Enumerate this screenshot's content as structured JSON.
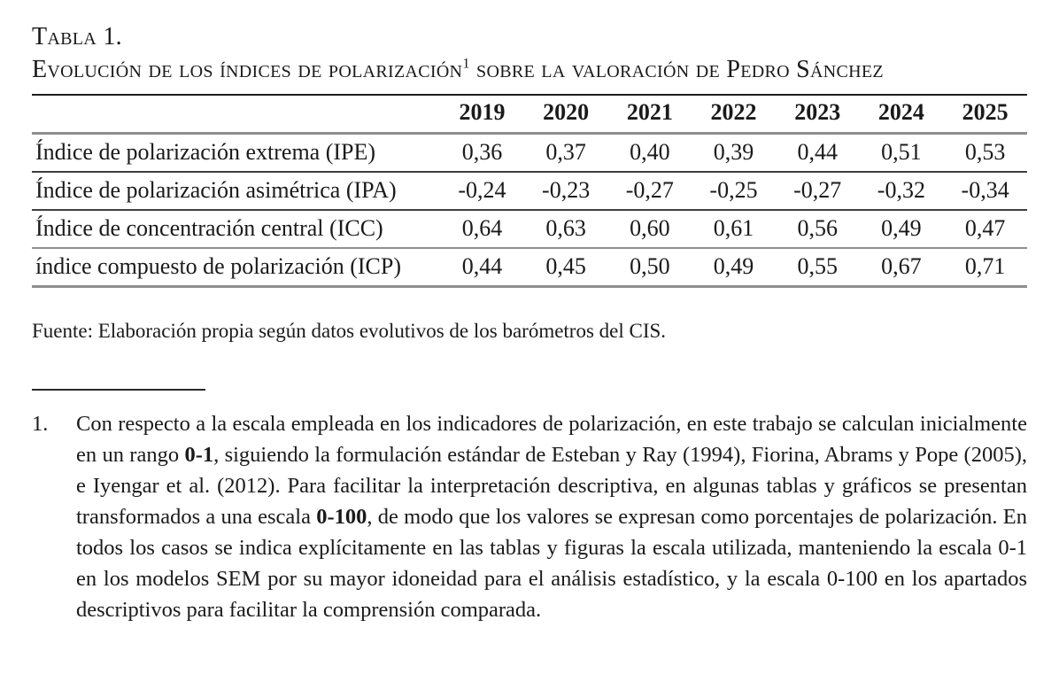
{
  "title": {
    "label": "Tabla 1.",
    "caption_pre": "Evolución de los índices de polarización",
    "caption_sup": "1",
    "caption_post": " sobre la valoración de Pedro Sánchez"
  },
  "table": {
    "columns": [
      "2019",
      "2020",
      "2021",
      "2022",
      "2023",
      "2024",
      "2025"
    ],
    "rows": [
      {
        "label": "Índice de polarización extrema (IPE)",
        "values": [
          "0,36",
          "0,37",
          "0,40",
          "0,39",
          "0,44",
          "0,51",
          "0,53"
        ]
      },
      {
        "label": "Índice de polarización asimétrica (IPA)",
        "values": [
          "-0,24",
          "-0,23",
          "-0,27",
          "-0,25",
          "-0,27",
          "-0,32",
          "-0,34"
        ]
      },
      {
        "label": "Índice de concentración central (ICC)",
        "values": [
          "0,64",
          "0,63",
          "0,60",
          "0,61",
          "0,56",
          "0,49",
          "0,47"
        ]
      },
      {
        "label": "índice compuesto de polarización (ICP)",
        "values": [
          "0,44",
          "0,45",
          "0,50",
          "0,49",
          "0,55",
          "0,67",
          "0,71"
        ]
      }
    ]
  },
  "source": "Fuente: Elaboración propia según datos evolutivos de los barómetros del CIS.",
  "footnote": {
    "number": "1.",
    "segments": [
      {
        "text": "Con respecto a la escala empleada en los indicadores de polarización, en este trabajo se calculan inicialmente en un rango ",
        "bold": false
      },
      {
        "text": "0-1",
        "bold": true
      },
      {
        "text": ", siguiendo la formulación estándar de Esteban y Ray (1994), Fiorina, Abrams y Pope (2005), e Iyengar et al. (2012). Para facilitar la interpretación descriptiva, en algunas tablas y gráficos se presentan transformados a una escala ",
        "bold": false
      },
      {
        "text": "0-100",
        "bold": true
      },
      {
        "text": ", de modo que los valores se expresan como porcentajes de polarización. En todos los casos se indica explícitamente en las tablas y figuras la escala utilizada, manteniendo la escala 0-1 en los modelos SEM por su mayor idoneidad para el análisis estadístico, y la escala 0-100 en los apartados descriptivos para facilitar la comprensión comparada.",
        "bold": false
      }
    ]
  }
}
